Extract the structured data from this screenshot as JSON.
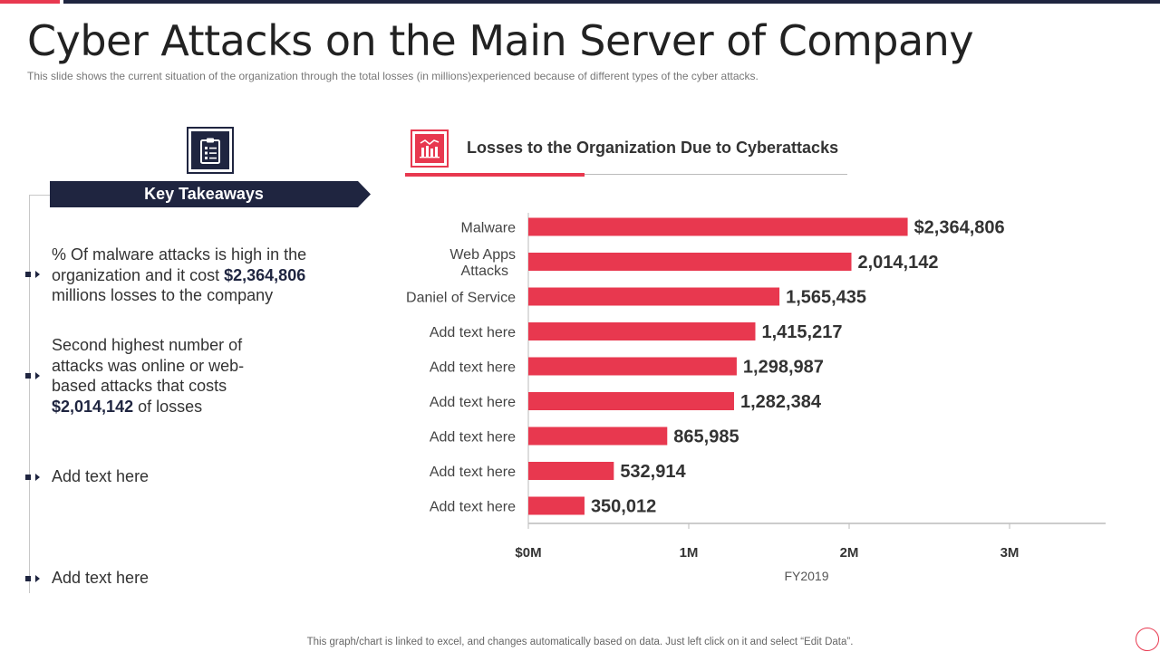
{
  "slide": {
    "title": "Cyber Attacks on the Main Server of Company",
    "subtitle": "This slide shows the current situation of the organization through the total losses (in millions)experienced  because of different  types of the cyber attacks.",
    "footer": "This graph/chart is linked to excel,  and changes automatically based on data. Just left click on it and select “Edit Data”."
  },
  "takeaways": {
    "header": "Key Takeaways",
    "items": [
      {
        "pre": "% Of malware attacks is high in the organization and it cost ",
        "bold": "$2,364,806",
        "post": " millions losses to the company"
      },
      {
        "pre": "Second highest number of attacks was online or web-based attacks that costs ",
        "bold": "$2,014,142",
        "post": " of losses"
      },
      {
        "pre": "Add text here",
        "bold": "",
        "post": ""
      },
      {
        "pre": "Add text here",
        "bold": "",
        "post": ""
      }
    ]
  },
  "chart_header": "Losses to the Organization Due to Cyberattacks",
  "colors": {
    "accent": "#e8384f",
    "navy": "#1f2540"
  },
  "icons": {
    "takeaways": "clipboard-checklist-icon",
    "chart": "bar-chart-icon"
  },
  "chart_data": {
    "type": "bar",
    "orientation": "horizontal",
    "title": "Losses to the Organization Due to Cyberattacks",
    "categories": [
      "Malware",
      "Web Apps Attacks",
      "Daniel of Service",
      "Add text here",
      "Add text here",
      "Add text here",
      "Add text here",
      "Add text here",
      "Add text here"
    ],
    "values": [
      2364806,
      2014142,
      1565435,
      1415217,
      1298987,
      1282384,
      865985,
      532914,
      350012
    ],
    "value_labels": [
      "$2,364,806",
      "2,014,142",
      "1,565,435",
      "1,415,217",
      "1,298,987",
      "1,282,384",
      "865,985",
      "532,914",
      "350,012"
    ],
    "xlabel": "FY2019",
    "ylabel": "",
    "xlim": [
      0,
      3600000
    ],
    "x_ticks": [
      0,
      1000000,
      2000000,
      3000000
    ],
    "x_tick_labels": [
      "$0M",
      "1M",
      "2M",
      "3M"
    ],
    "grid": false,
    "bar_color": "#e8384f"
  }
}
